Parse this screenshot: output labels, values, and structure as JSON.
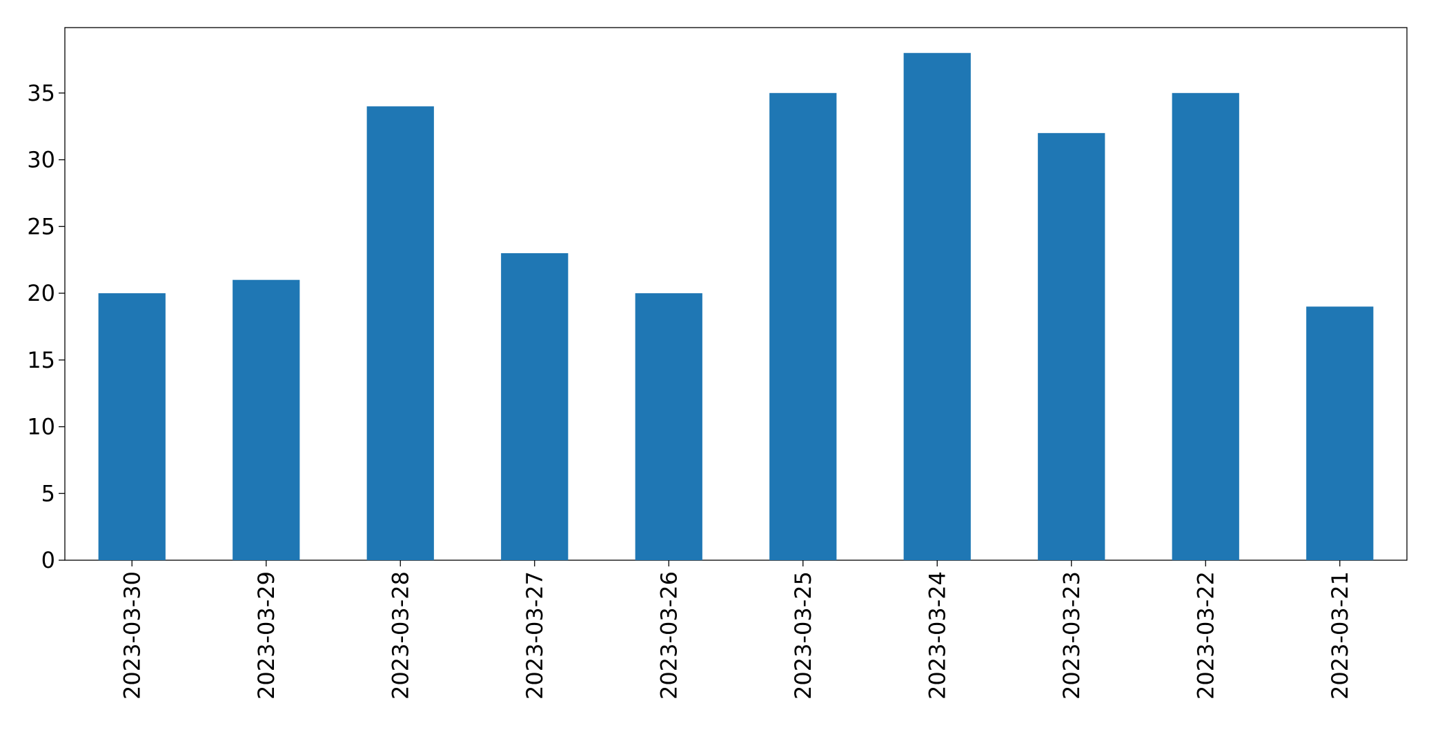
{
  "chart_data": {
    "type": "bar",
    "categories": [
      "2023-03-30",
      "2023-03-29",
      "2023-03-28",
      "2023-03-27",
      "2023-03-26",
      "2023-03-25",
      "2023-03-24",
      "2023-03-23",
      "2023-03-22",
      "2023-03-21"
    ],
    "values": [
      20,
      21,
      34,
      23,
      20,
      35,
      38,
      32,
      35,
      19
    ],
    "color": "#1f77b4",
    "ylim": [
      0,
      39.9
    ],
    "yticks": [
      0,
      5,
      10,
      15,
      20,
      25,
      30,
      35
    ],
    "grid": false
  }
}
